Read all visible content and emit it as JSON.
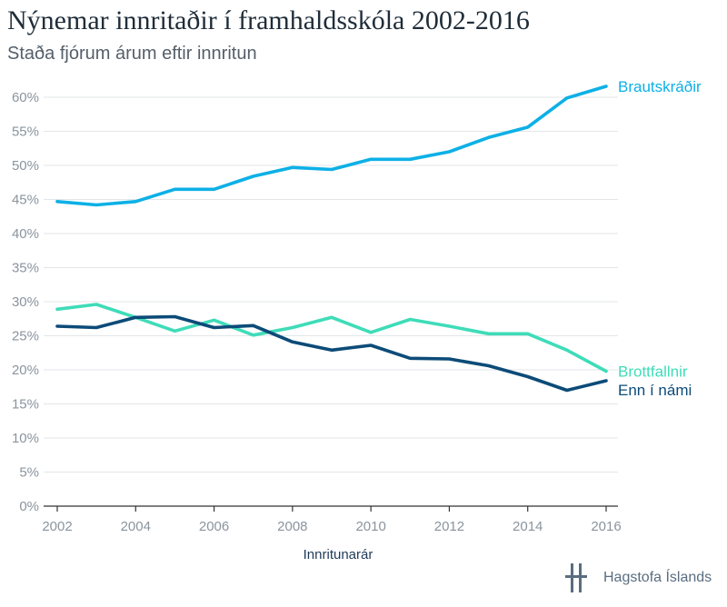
{
  "title": "Nýnemar innritaðir í framhaldsskóla 2002-2016",
  "subtitle": "Staða fjórum árum eftir innritun",
  "logo": {
    "text": "Hagstofa Íslands",
    "icon": "hagstofa-logo-icon"
  },
  "colors": {
    "grid": "#e3e6e9",
    "axis": "#333333"
  },
  "chart_data": {
    "type": "line",
    "title": "Nýnemar innritaðir í framhaldsskóla 2002-2016",
    "subtitle": "Staða fjórum árum eftir innritun",
    "xlabel": "Innritunarár",
    "ylabel": "",
    "ylim": [
      0,
      60
    ],
    "grid": true,
    "x": [
      2002,
      2003,
      2004,
      2005,
      2006,
      2007,
      2008,
      2009,
      2010,
      2011,
      2012,
      2013,
      2014,
      2015,
      2016
    ],
    "x_ticks": [
      "2002",
      "2004",
      "2006",
      "2008",
      "2010",
      "2012",
      "2014",
      "2016"
    ],
    "y_ticks": [
      "0%",
      "5%",
      "10%",
      "15%",
      "20%",
      "25%",
      "30%",
      "35%",
      "40%",
      "45%",
      "50%",
      "55%",
      "60%"
    ],
    "series": [
      {
        "name": "Brautskráðir",
        "color": "#0db0e6",
        "values": [
          44.7,
          44.2,
          44.7,
          46.5,
          46.5,
          48.4,
          49.7,
          49.4,
          50.9,
          50.9,
          52.0,
          54.1,
          55.6,
          59.9,
          61.6
        ]
      },
      {
        "name": "Brottfallnir",
        "color": "#3fdcb9",
        "values": [
          28.9,
          29.6,
          27.7,
          25.7,
          27.3,
          25.1,
          26.2,
          27.7,
          25.5,
          27.4,
          26.4,
          25.3,
          25.3,
          22.9,
          19.8
        ]
      },
      {
        "name": "Enn í námi",
        "color": "#0c4b78",
        "values": [
          26.4,
          26.2,
          27.7,
          27.8,
          26.2,
          26.5,
          24.1,
          22.9,
          23.6,
          21.7,
          21.6,
          20.6,
          19.0,
          17.0,
          18.4
        ]
      }
    ]
  }
}
